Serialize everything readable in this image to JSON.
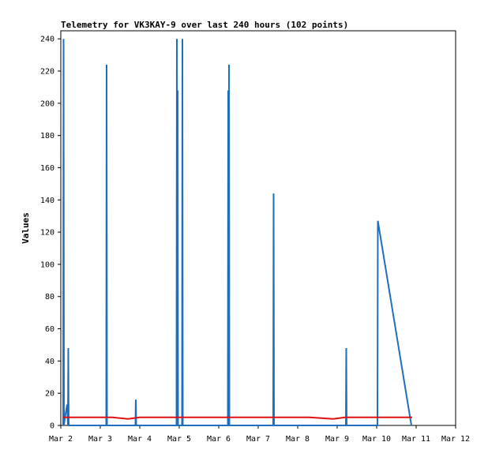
{
  "chart_data": {
    "type": "line",
    "title": "Telemetry for VK3KAY-9 over last 240 hours (102 points)",
    "xlabel": "",
    "ylabel": "Values",
    "x_unit": "days since Mar 2",
    "xlim": [
      0,
      10
    ],
    "ylim": [
      0,
      245
    ],
    "yticks": [
      0,
      20,
      40,
      60,
      80,
      100,
      120,
      140,
      160,
      180,
      200,
      220,
      240
    ],
    "xtick_labels": [
      "Mar 2",
      "Mar 3",
      "Mar 4",
      "Mar 5",
      "Mar 6",
      "Mar 7",
      "Mar 8",
      "Mar 9",
      "Mar 10",
      "Mar 11",
      "Mar 12"
    ],
    "grid": false,
    "legend": "none",
    "colors": {
      "series_blue": "#1f6fbf",
      "series_red": "#e01010"
    },
    "series": [
      {
        "color": "#1f6fbf",
        "points": [
          [
            0.06,
            0
          ],
          [
            0.07,
            240
          ],
          [
            0.08,
            0
          ],
          [
            0.1,
            4
          ],
          [
            0.16,
            13
          ],
          [
            0.18,
            0
          ],
          [
            0.19,
            48
          ],
          [
            0.2,
            0
          ],
          [
            1.15,
            0
          ],
          [
            1.16,
            224
          ],
          [
            1.17,
            0
          ],
          [
            1.89,
            0
          ],
          [
            1.9,
            16
          ],
          [
            1.91,
            0
          ],
          [
            2.93,
            0
          ],
          [
            2.94,
            240
          ],
          [
            2.95,
            0
          ],
          [
            2.96,
            208
          ],
          [
            2.97,
            0
          ],
          [
            3.07,
            0
          ],
          [
            3.08,
            240
          ],
          [
            3.09,
            0
          ],
          [
            4.23,
            0
          ],
          [
            4.24,
            208
          ],
          [
            4.25,
            0
          ],
          [
            4.26,
            224
          ],
          [
            4.27,
            0
          ],
          [
            5.38,
            0
          ],
          [
            5.39,
            144
          ],
          [
            5.4,
            0
          ],
          [
            7.22,
            0
          ],
          [
            7.23,
            48
          ],
          [
            7.24,
            0
          ],
          [
            8.02,
            0
          ],
          [
            8.03,
            127
          ],
          [
            8.88,
            0
          ]
        ]
      },
      {
        "color": "#e01010",
        "points": [
          [
            0.05,
            5
          ],
          [
            1.3,
            5
          ],
          [
            1.7,
            4
          ],
          [
            2.0,
            5
          ],
          [
            6.3,
            5
          ],
          [
            6.9,
            4
          ],
          [
            7.2,
            5
          ],
          [
            8.9,
            5
          ]
        ]
      }
    ]
  }
}
